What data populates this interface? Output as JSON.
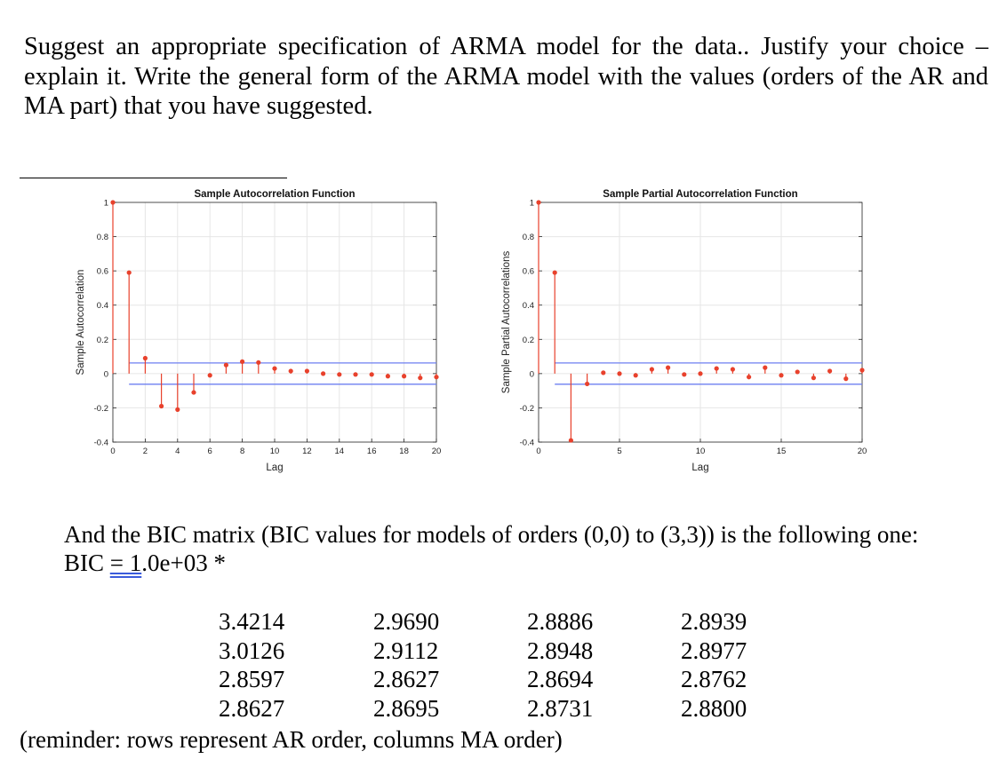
{
  "question": "Suggest an appropriate specification of ARMA model for the data.. Justify your choice – explain it. Write the general form of the ARMA model with the values (orders of the AR and MA part) that you have suggested.",
  "chart_data": [
    {
      "type": "stem",
      "title": "Sample Autocorrelation Function",
      "xlabel": "Lag",
      "ylabel": "Sample Autocorrelation",
      "xlim": [
        0,
        20
      ],
      "ylim": [
        -0.4,
        1
      ],
      "x_ticks": [
        0,
        2,
        4,
        6,
        8,
        10,
        12,
        14,
        16,
        18,
        20
      ],
      "y_ticks": [
        -0.4,
        -0.2,
        0,
        0.2,
        0.4,
        0.6,
        0.8,
        1
      ],
      "confidence_bounds": [
        0.062,
        -0.062
      ],
      "x": [
        0,
        1,
        2,
        3,
        4,
        5,
        6,
        7,
        8,
        9,
        10,
        11,
        12,
        13,
        14,
        15,
        16,
        17,
        18,
        19,
        20
      ],
      "values": [
        1,
        0.59,
        0.09,
        -0.19,
        -0.21,
        -0.11,
        -0.01,
        0.05,
        0.07,
        0.065,
        0.03,
        0.015,
        0.015,
        0.0,
        -0.005,
        -0.005,
        -0.005,
        -0.015,
        -0.015,
        -0.025,
        -0.02
      ]
    },
    {
      "type": "stem",
      "title": "Sample Partial Autocorrelation Function",
      "xlabel": "Lag",
      "ylabel": "Sample Partial Autocorrelations",
      "xlim": [
        0,
        20
      ],
      "ylim": [
        -0.4,
        1
      ],
      "x_ticks": [
        0,
        5,
        10,
        15,
        20
      ],
      "y_ticks": [
        -0.4,
        -0.2,
        0,
        0.2,
        0.4,
        0.6,
        0.8,
        1
      ],
      "confidence_bounds": [
        0.062,
        -0.062
      ],
      "x": [
        0,
        1,
        2,
        3,
        4,
        5,
        6,
        7,
        8,
        9,
        10,
        11,
        12,
        13,
        14,
        15,
        16,
        17,
        18,
        19,
        20
      ],
      "values": [
        1,
        0.59,
        -0.39,
        -0.06,
        0.005,
        0.0,
        -0.01,
        0.025,
        0.035,
        -0.005,
        0.0,
        0.03,
        0.025,
        -0.02,
        0.035,
        -0.01,
        0.01,
        -0.025,
        0.015,
        -0.03,
        0.02
      ]
    }
  ],
  "bic_intro_line1": "And the BIC matrix (BIC values for models of orders (0,0) to (3,3)) is the following one:",
  "bic_label": "BIC",
  "bic_eq_scale": "= 1",
  "bic_scale_rest": ".0e+03 *",
  "bic_matrix": [
    [
      "3.4214",
      "2.9690",
      "2.8886",
      "2.8939"
    ],
    [
      "3.0126",
      "2.9112",
      "2.8948",
      "2.8977"
    ],
    [
      "2.8597",
      "2.8627",
      "2.8694",
      "2.8762"
    ],
    [
      "2.8627",
      "2.8695",
      "2.8731",
      "2.8800"
    ]
  ],
  "reminder": "(reminder: rows represent AR order, columns MA order)",
  "colors": {
    "stem": "#e8412c",
    "bounds": "#6d7ff0",
    "grid": "#e6e6e6",
    "axis": "#262626"
  }
}
